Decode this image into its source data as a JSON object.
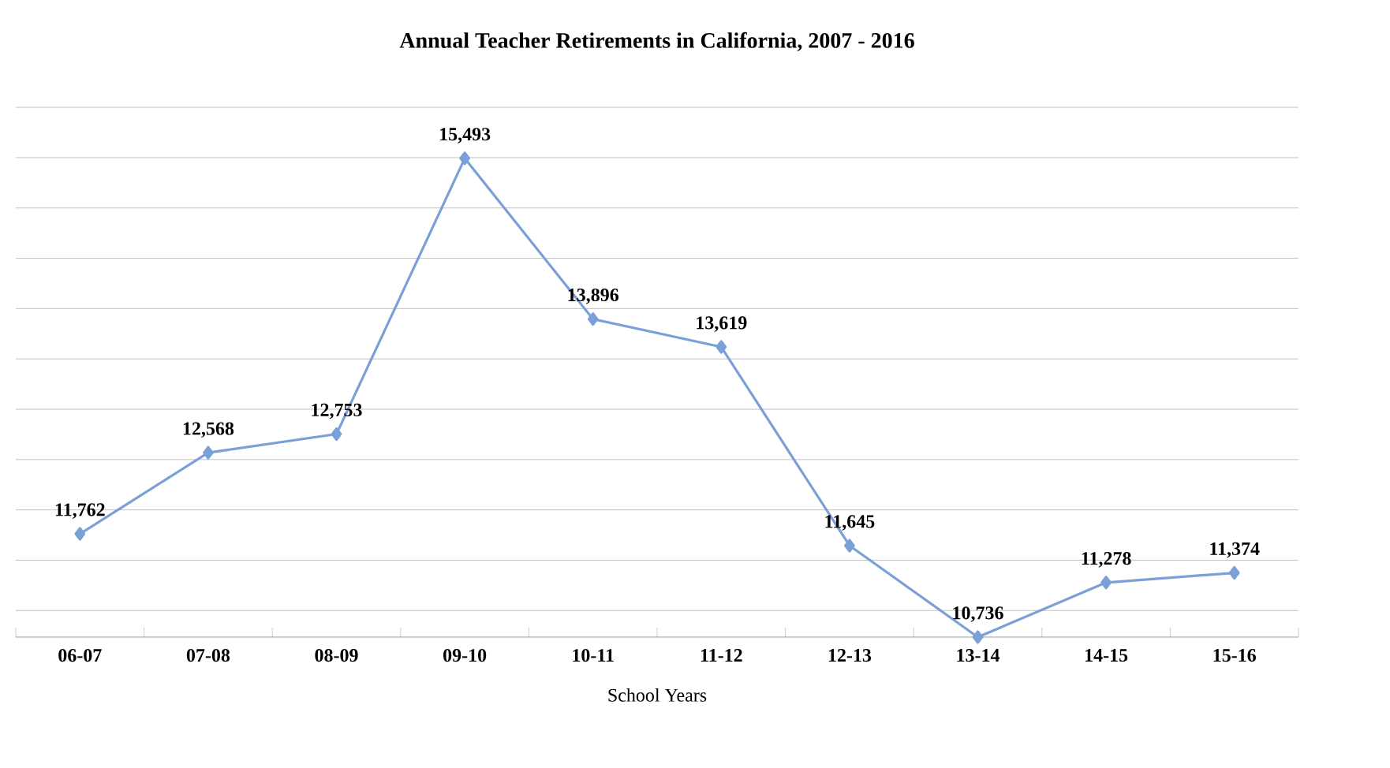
{
  "chart_data": {
    "type": "line",
    "title": "Annual Teacher Retirements in California,  2007 - 2016",
    "xlabel": "School Years",
    "categories": [
      "06-07",
      "07-08",
      "08-09",
      "09-10",
      "10-11",
      "11-12",
      "12-13",
      "13-14",
      "14-15",
      "15-16"
    ],
    "values": [
      11762,
      12568,
      12753,
      15493,
      13896,
      13619,
      11645,
      10736,
      11278,
      11374
    ],
    "value_labels": [
      "11,762",
      "12,568",
      "12,753",
      "15,493",
      "13,896",
      "13,619",
      "11,645",
      "10,736",
      "11,278",
      "11,374"
    ],
    "color": "#7ba0d8",
    "marker": "diamond",
    "grid": "y",
    "tick_labels": "x"
  }
}
